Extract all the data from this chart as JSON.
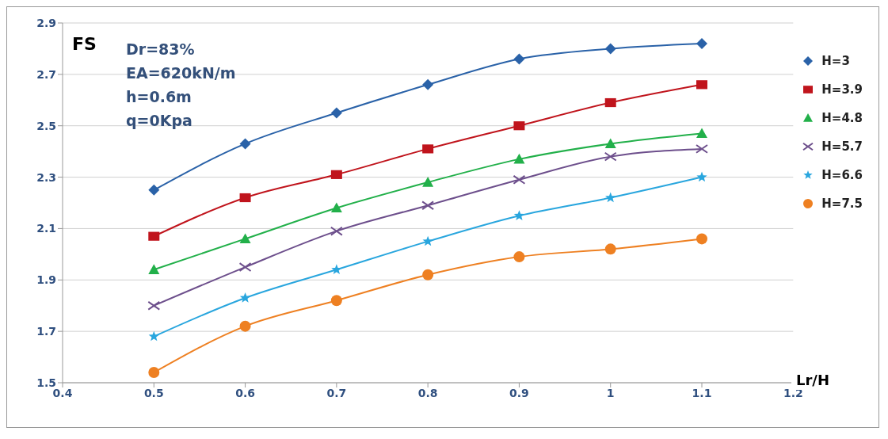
{
  "chart_data": {
    "type": "line",
    "ylabel": "FS",
    "xlabel": "Lr/H",
    "annotations": [
      "Dr=83%",
      "EA=620kN/m",
      "h=0.6m",
      "q=0Kpa"
    ],
    "x": [
      0.5,
      0.6,
      0.7,
      0.8,
      0.9,
      1.0,
      1.1
    ],
    "series": [
      {
        "name": "H=3",
        "color": "#2a62a8",
        "marker": "diamond",
        "values": [
          2.25,
          2.43,
          2.55,
          2.66,
          2.76,
          2.8,
          2.82
        ]
      },
      {
        "name": "H=3.9",
        "color": "#c0141c",
        "marker": "square",
        "values": [
          2.07,
          2.22,
          2.31,
          2.41,
          2.5,
          2.59,
          2.66
        ]
      },
      {
        "name": "H=4.8",
        "color": "#22b04a",
        "marker": "triangle",
        "values": [
          1.94,
          2.06,
          2.18,
          2.28,
          2.37,
          2.43,
          2.47
        ]
      },
      {
        "name": "H=5.7",
        "color": "#6d4f8c",
        "marker": "cross",
        "values": [
          1.8,
          1.95,
          2.09,
          2.19,
          2.29,
          2.38,
          2.41
        ]
      },
      {
        "name": "H=6.6",
        "color": "#29a6de",
        "marker": "star",
        "values": [
          1.68,
          1.83,
          1.94,
          2.05,
          2.15,
          2.22,
          2.3
        ]
      },
      {
        "name": "H=7.5",
        "color": "#ee8022",
        "marker": "circle",
        "values": [
          1.54,
          1.72,
          1.82,
          1.92,
          1.99,
          2.02,
          2.06
        ]
      }
    ],
    "xlim": [
      0.4,
      1.2
    ],
    "xticks": [
      0.4,
      0.5,
      0.6,
      0.7,
      0.8,
      0.9,
      1,
      1.1,
      1.2
    ],
    "ylim": [
      1.5,
      2.9
    ],
    "yticks": [
      1.5,
      1.7,
      1.9,
      2.1,
      2.3,
      2.5,
      2.7,
      2.9
    ],
    "grid": "y",
    "legend": "right",
    "line_style": "solid"
  }
}
